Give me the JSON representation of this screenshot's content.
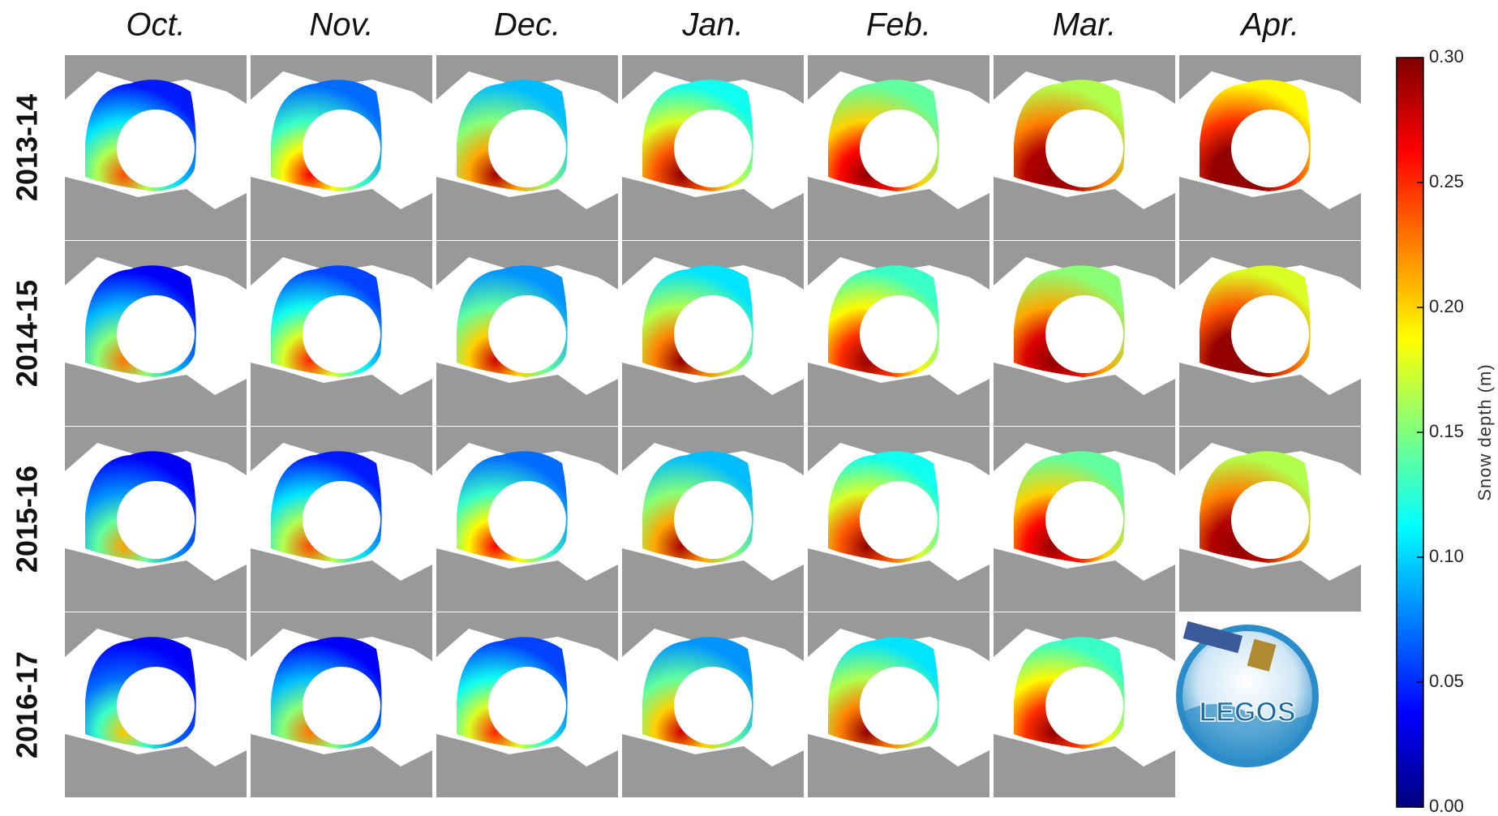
{
  "chart_data": {
    "type": "map-grid",
    "columns": [
      "Oct.",
      "Nov.",
      "Dec.",
      "Jan.",
      "Feb.",
      "Mar.",
      "Apr."
    ],
    "rows": [
      "2013-14",
      "2014-15",
      "2015-16",
      "2016-17"
    ],
    "colorbar_label": "Snow depth (m)",
    "clim": [
      0,
      0.3
    ],
    "cticks": [
      {
        "value": 0,
        "label": "0.00"
      },
      0.05,
      {
        "value": 0.1,
        "label": "0.10"
      },
      0.15,
      {
        "value": 0.2,
        "label": "0.20"
      },
      0.25,
      {
        "value": 0.3,
        "label": "0.30"
      }
    ],
    "logo": "LEGOS"
  }
}
